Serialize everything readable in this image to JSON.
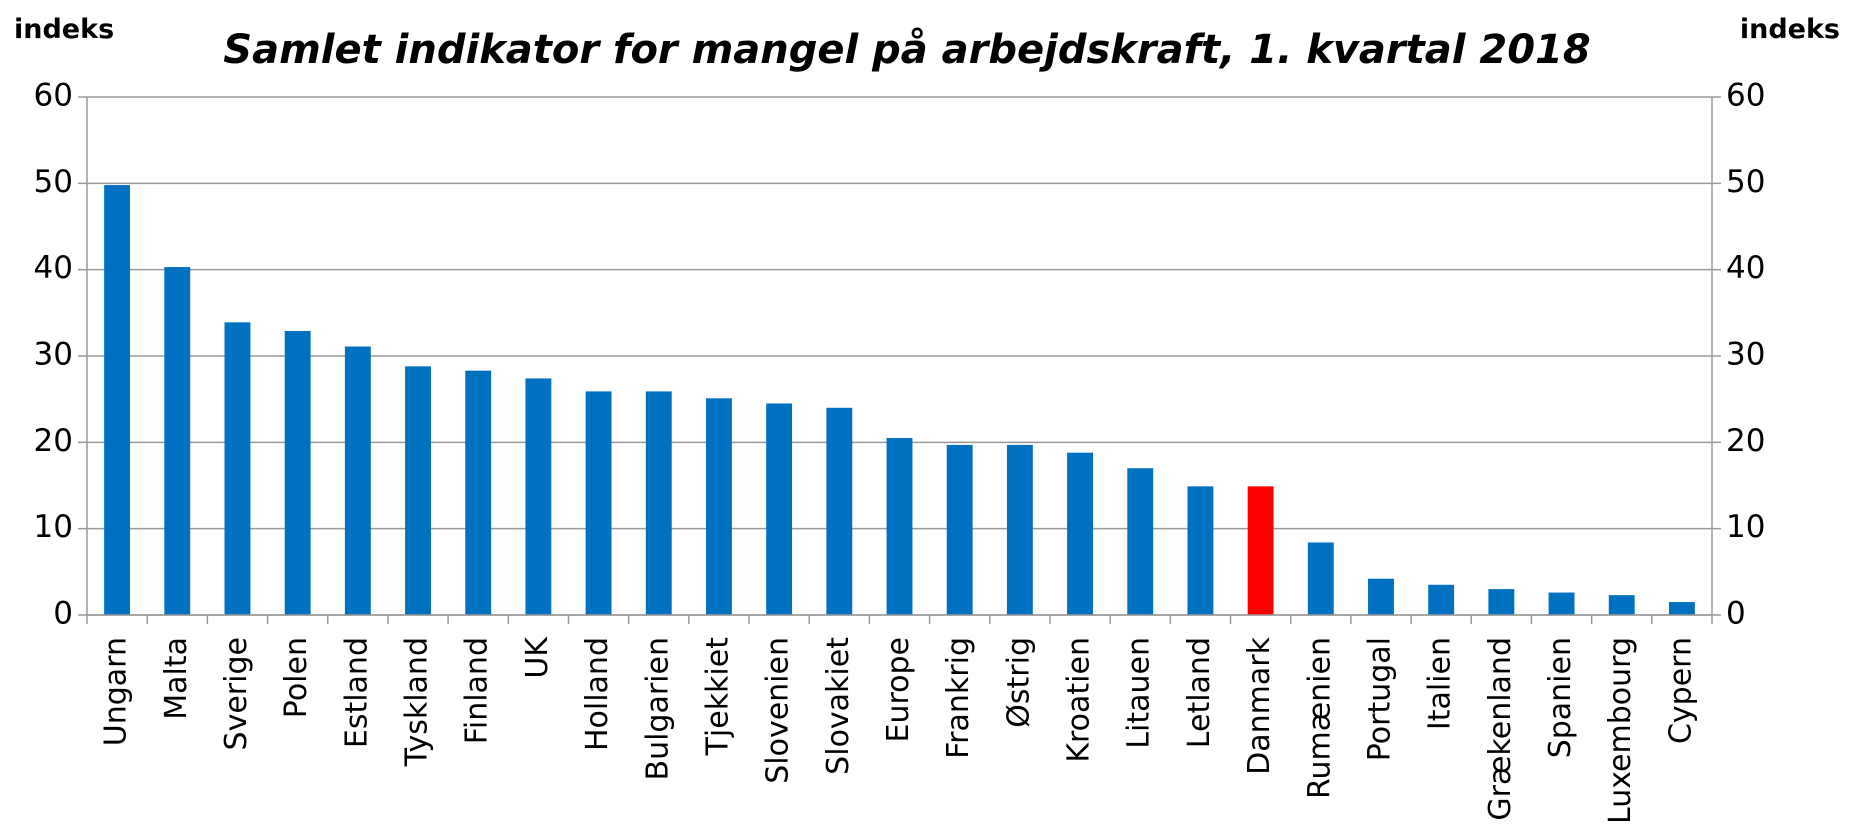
{
  "chart_data": {
    "type": "bar",
    "title": "Samlet indikator for mangel på arbejdskraft, 1. kvartal 2018",
    "y_label": "indeks",
    "y2_label": "indeks",
    "categories": [
      "Ungarn",
      "Malta",
      "Sverige",
      "Polen",
      "Estland",
      "Tyskland",
      "Finland",
      "UK",
      "Holland",
      "Bulgarien",
      "Tjekkiet",
      "Slovenien",
      "Slovakiet",
      "Europe",
      "Frankrig",
      "Østrig",
      "Kroatien",
      "Litauen",
      "Letland",
      "Danmark",
      "Rumænien",
      "Portugal",
      "Italien",
      "Grækenland",
      "Spanien",
      "Luxembourg",
      "Cypern"
    ],
    "values": [
      49.8,
      40.3,
      33.9,
      32.9,
      31.1,
      28.8,
      28.3,
      27.4,
      25.9,
      25.9,
      25.1,
      24.5,
      24.0,
      20.5,
      19.7,
      19.7,
      18.8,
      17.0,
      14.9,
      14.9,
      8.4,
      4.2,
      3.5,
      3.0,
      2.6,
      2.3,
      1.5
    ],
    "colors": [
      "#0070c0",
      "#0070c0",
      "#0070c0",
      "#0070c0",
      "#0070c0",
      "#0070c0",
      "#0070c0",
      "#0070c0",
      "#0070c0",
      "#0070c0",
      "#0070c0",
      "#0070c0",
      "#0070c0",
      "#0070c0",
      "#0070c0",
      "#0070c0",
      "#0070c0",
      "#0070c0",
      "#0070c0",
      "#ff0000",
      "#0070c0",
      "#0070c0",
      "#0070c0",
      "#0070c0",
      "#0070c0",
      "#0070c0",
      "#0070c0"
    ],
    "ylim": [
      0,
      60
    ],
    "yticks": [
      0,
      10,
      20,
      30,
      40,
      50,
      60
    ],
    "y2lim": [
      0,
      60
    ],
    "y2ticks": [
      0,
      10,
      20,
      30,
      40,
      50,
      60
    ],
    "grid": true
  }
}
